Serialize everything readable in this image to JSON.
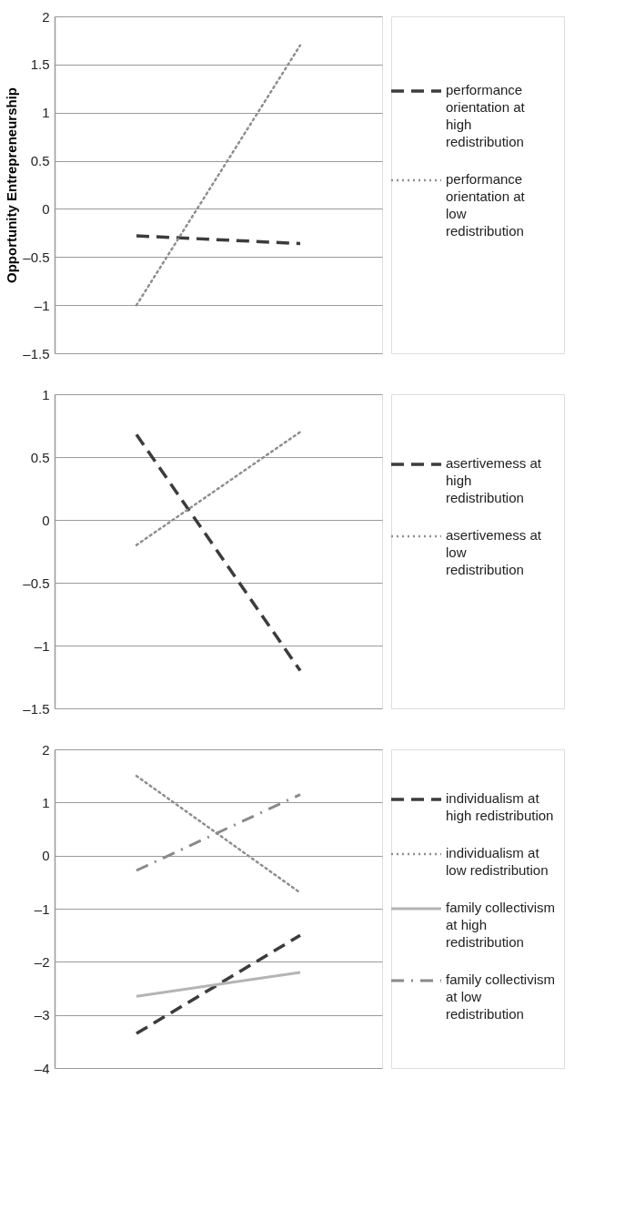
{
  "chart_data": [
    {
      "type": "line",
      "ylabel": "Opportunity Entrepreneurship",
      "categories": [
        null,
        null
      ],
      "ylim": [
        -1.5,
        2
      ],
      "yticks": [
        {
          "value": -1.5,
          "label": "–1.5"
        },
        {
          "value": -1,
          "label": "–1"
        },
        {
          "value": -0.5,
          "label": "–0.5"
        },
        0,
        0.5,
        1,
        1.5,
        2
      ],
      "grid": "y",
      "legend": "right",
      "tick_labels": "y",
      "marker": "none",
      "series": [
        {
          "name": "performance orientation at high redistribution",
          "color": "#3c3c3c",
          "line_style": "dashed",
          "values": [
            -0.28,
            -0.36
          ]
        },
        {
          "name": "performance orientation at low redistribution",
          "color": "#8e8e8e",
          "line_style": "dotted",
          "values": [
            -1.0,
            1.7
          ]
        }
      ]
    },
    {
      "type": "line",
      "categories": [
        null,
        null
      ],
      "ylim": [
        -1.5,
        1
      ],
      "yticks": [
        {
          "value": -1.5,
          "label": "–1.5"
        },
        {
          "value": -1,
          "label": "–1"
        },
        {
          "value": -0.5,
          "label": "–0.5"
        },
        0,
        0.5,
        1
      ],
      "grid": "y",
      "legend": "right",
      "tick_labels": "y",
      "marker": "none",
      "series": [
        {
          "name": "asertivemess at high redistribution",
          "color": "#3c3c3c",
          "line_style": "dashed",
          "values": [
            0.68,
            -1.2
          ]
        },
        {
          "name": "asertivemess at low redistribution",
          "color": "#8e8e8e",
          "line_style": "dotted",
          "values": [
            -0.2,
            0.7
          ]
        }
      ]
    },
    {
      "type": "line",
      "categories": [
        null,
        null
      ],
      "ylim": [
        -4,
        2
      ],
      "yticks": [
        {
          "value": -4,
          "label": "–4"
        },
        {
          "value": -3,
          "label": "–3"
        },
        {
          "value": -2,
          "label": "–2"
        },
        {
          "value": -1,
          "label": "–1"
        },
        0,
        1,
        2
      ],
      "grid": "y",
      "legend": "right",
      "tick_labels": "y",
      "marker": "none",
      "series": [
        {
          "name": "individualism at high redistribution",
          "color": "#3c3c3c",
          "line_style": "dashed",
          "values": [
            -3.35,
            -1.5
          ]
        },
        {
          "name": "individualism at low redistribution",
          "color": "#8e8e8e",
          "line_style": "dotted",
          "values": [
            1.5,
            -0.7
          ]
        },
        {
          "name": "family collectivism at high redistribution",
          "color": "#b4b4b4",
          "line_style": "solid",
          "values": [
            -2.65,
            -2.2
          ]
        },
        {
          "name": "family collectivism at low redistribution",
          "color": "#8a8a8a",
          "line_style": "dashdot",
          "values": [
            -0.28,
            1.15
          ]
        }
      ]
    }
  ]
}
